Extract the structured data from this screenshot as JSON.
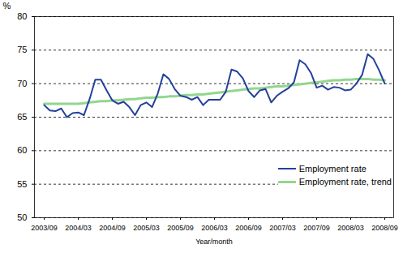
{
  "chart_data": {
    "type": "line",
    "x_label": "Year/month",
    "y_label": "%",
    "categories": [
      "2003/09",
      null,
      null,
      null,
      null,
      null,
      "2004/03",
      null,
      null,
      null,
      null,
      null,
      "2004/09",
      null,
      null,
      null,
      null,
      null,
      "2005/03",
      null,
      null,
      null,
      null,
      null,
      "2005/09",
      null,
      null,
      null,
      null,
      null,
      "2006/03",
      null,
      null,
      null,
      null,
      null,
      "2006/09",
      null,
      null,
      null,
      null,
      null,
      "2007/03",
      null,
      null,
      null,
      null,
      null,
      "2007/09",
      null,
      null,
      null,
      null,
      null,
      "2008/03",
      null,
      null,
      null,
      null,
      null,
      "2008/09"
    ],
    "series": [
      {
        "name": "Employment rate",
        "color": "#23409a",
        "values": [
          66.8,
          66.0,
          65.9,
          66.3,
          65.0,
          65.6,
          65.7,
          65.3,
          67.7,
          70.6,
          70.6,
          69.0,
          67.5,
          67.0,
          67.3,
          66.5,
          65.3,
          66.8,
          67.2,
          66.5,
          68.5,
          71.4,
          70.7,
          69.2,
          68.2,
          68.0,
          67.6,
          68.0,
          66.8,
          67.6,
          67.6,
          67.6,
          68.8,
          72.1,
          71.8,
          70.8,
          68.9,
          68.0,
          69.0,
          69.2,
          67.2,
          68.2,
          68.8,
          69.3,
          70.2,
          73.5,
          72.9,
          71.6,
          69.4,
          69.7,
          69.1,
          69.5,
          69.4,
          69.0,
          69.1,
          70.0,
          71.3,
          74.4,
          73.7,
          72.0,
          70.0
        ]
      },
      {
        "name": "Employment rate, trend",
        "color": "#93d68f",
        "values": [
          67.0,
          67.0,
          67.0,
          67.0,
          67.0,
          67.0,
          67.0,
          67.1,
          67.2,
          67.3,
          67.4,
          67.4,
          67.5,
          67.5,
          67.6,
          67.7,
          67.7,
          67.8,
          67.9,
          67.9,
          68.0,
          68.0,
          68.1,
          68.1,
          68.2,
          68.3,
          68.3,
          68.4,
          68.4,
          68.5,
          68.6,
          68.7,
          68.8,
          68.9,
          69.0,
          69.1,
          69.2,
          69.3,
          69.3,
          69.4,
          69.5,
          69.6,
          69.6,
          69.7,
          69.8,
          69.9,
          70.0,
          70.1,
          70.2,
          70.3,
          70.4,
          70.5,
          70.5,
          70.6,
          70.6,
          70.7,
          70.7,
          70.7,
          70.6,
          70.6,
          70.5
        ]
      }
    ],
    "ylim": [
      50,
      80
    ],
    "yticks": [
      50,
      55,
      60,
      65,
      70,
      75,
      80
    ],
    "grid": true,
    "legend": "bottom-right"
  }
}
